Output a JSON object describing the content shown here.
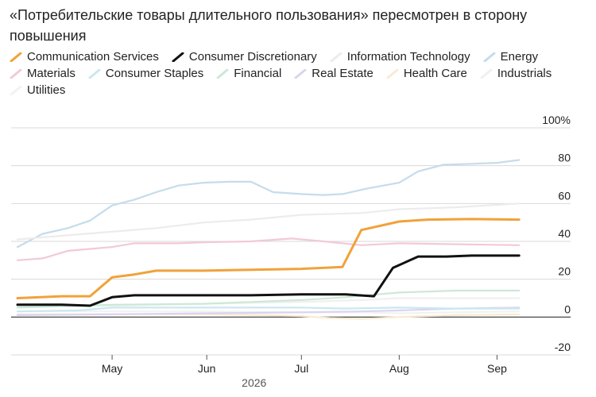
{
  "title": "«Потребительские товары длительного пользования» пересмотрен в сторону повышения",
  "chart_data": {
    "type": "line",
    "title": "«Потребительские товары длительного пользования» пересмотрен в сторону повышения",
    "xlabel": "2026",
    "ylabel": "",
    "x_ticks": [
      {
        "label": "May",
        "x": 31
      },
      {
        "label": "Jun",
        "x": 61
      },
      {
        "label": "Jul",
        "x": 91
      },
      {
        "label": "Aug",
        "x": 122
      },
      {
        "label": "Sep",
        "x": 153
      }
    ],
    "xlim": [
      0,
      168
    ],
    "ylim": [
      -20,
      100
    ],
    "y_ticks": [
      100,
      80,
      60,
      40,
      20,
      0,
      -20
    ],
    "y_tick_labels": [
      "100%",
      "80",
      "60",
      "40",
      "20",
      "0",
      "-20"
    ],
    "grid": "horizontal",
    "legend_position": "top",
    "series": [
      {
        "name": "Communication Services",
        "color": "#f0a23a",
        "highlight": true,
        "points": [
          [
            1,
            10
          ],
          [
            15,
            11
          ],
          [
            24,
            11
          ],
          [
            31,
            21
          ],
          [
            38,
            22.5
          ],
          [
            45,
            24.5
          ],
          [
            60,
            24.5
          ],
          [
            75,
            25
          ],
          [
            91,
            25.5
          ],
          [
            104,
            26.5
          ],
          [
            110,
            46
          ],
          [
            122,
            50.5
          ],
          [
            131,
            51.5
          ],
          [
            145,
            51.8
          ],
          [
            160,
            51.5
          ]
        ]
      },
      {
        "name": "Consumer Discretionary",
        "color": "#111111",
        "highlight": true,
        "points": [
          [
            1,
            6.5
          ],
          [
            15,
            6.5
          ],
          [
            24,
            6
          ],
          [
            31,
            10.5
          ],
          [
            38,
            11.5
          ],
          [
            60,
            11.5
          ],
          [
            75,
            11.5
          ],
          [
            91,
            12
          ],
          [
            105,
            12
          ],
          [
            114,
            11
          ],
          [
            120,
            26
          ],
          [
            128,
            32
          ],
          [
            137,
            32
          ],
          [
            145,
            32.5
          ],
          [
            160,
            32.5
          ]
        ]
      },
      {
        "name": "Information Technology",
        "color": "#ececec",
        "points": [
          [
            1,
            41
          ],
          [
            15,
            43
          ],
          [
            30,
            45
          ],
          [
            45,
            47
          ],
          [
            60,
            50
          ],
          [
            75,
            51.5
          ],
          [
            91,
            54
          ],
          [
            110,
            55
          ],
          [
            122,
            57
          ],
          [
            140,
            58
          ],
          [
            160,
            60
          ]
        ]
      },
      {
        "name": "Energy",
        "color": "#c5dcec",
        "points": [
          [
            1,
            37
          ],
          [
            9,
            44
          ],
          [
            17,
            47
          ],
          [
            24,
            51
          ],
          [
            31,
            59
          ],
          [
            38,
            62
          ],
          [
            45,
            66
          ],
          [
            52,
            69.5
          ],
          [
            60,
            71
          ],
          [
            68,
            71.5
          ],
          [
            75,
            71.5
          ],
          [
            82,
            66
          ],
          [
            91,
            65
          ],
          [
            98,
            64.5
          ],
          [
            104,
            65
          ],
          [
            112,
            68
          ],
          [
            122,
            71
          ],
          [
            128,
            77
          ],
          [
            136,
            80.5
          ],
          [
            145,
            81
          ],
          [
            153,
            81.5
          ],
          [
            160,
            83
          ]
        ]
      },
      {
        "name": "Materials",
        "color": "#f2c9d8",
        "points": [
          [
            1,
            30
          ],
          [
            9,
            31
          ],
          [
            17,
            35
          ],
          [
            24,
            36
          ],
          [
            31,
            37
          ],
          [
            38,
            39
          ],
          [
            52,
            39
          ],
          [
            60,
            39.5
          ],
          [
            75,
            40
          ],
          [
            88,
            41.5
          ],
          [
            98,
            40
          ],
          [
            110,
            38
          ],
          [
            122,
            39
          ],
          [
            140,
            38.5
          ],
          [
            160,
            38
          ]
        ]
      },
      {
        "name": "Consumer Staples",
        "color": "#c8e9ef",
        "points": [
          [
            1,
            3
          ],
          [
            20,
            3.5
          ],
          [
            31,
            5
          ],
          [
            45,
            5
          ],
          [
            60,
            5
          ],
          [
            75,
            5
          ],
          [
            91,
            5
          ],
          [
            105,
            4.5
          ],
          [
            122,
            5
          ],
          [
            140,
            4.5
          ],
          [
            160,
            4.5
          ]
        ]
      },
      {
        "name": "Financial",
        "color": "#cde8d6",
        "points": [
          [
            1,
            5
          ],
          [
            31,
            6.5
          ],
          [
            60,
            7
          ],
          [
            75,
            8
          ],
          [
            91,
            9
          ],
          [
            105,
            10.5
          ],
          [
            122,
            13
          ],
          [
            140,
            14
          ],
          [
            160,
            14
          ]
        ]
      },
      {
        "name": "Real Estate",
        "color": "#dcd3f0",
        "points": [
          [
            1,
            1
          ],
          [
            31,
            1.5
          ],
          [
            60,
            2
          ],
          [
            91,
            2.5
          ],
          [
            110,
            3
          ],
          [
            122,
            3.5
          ],
          [
            140,
            4.5
          ],
          [
            160,
            5
          ]
        ]
      },
      {
        "name": "Health Care",
        "color": "#f7ecd0",
        "points": [
          [
            1,
            1.5
          ],
          [
            31,
            1.5
          ],
          [
            60,
            1.5
          ],
          [
            80,
            1
          ],
          [
            91,
            0.5
          ],
          [
            100,
            -0.5
          ],
          [
            110,
            -1
          ],
          [
            122,
            0
          ],
          [
            140,
            1
          ],
          [
            160,
            1.5
          ]
        ]
      },
      {
        "name": "Industrials",
        "color": "#f0f0f0",
        "points": [
          [
            1,
            6
          ],
          [
            31,
            6
          ],
          [
            60,
            7
          ],
          [
            91,
            8
          ],
          [
            110,
            9
          ],
          [
            122,
            10
          ],
          [
            140,
            10
          ],
          [
            160,
            10
          ]
        ]
      },
      {
        "name": "Utilities",
        "color": "#f2f2f2",
        "points": [
          [
            1,
            3
          ],
          [
            31,
            3
          ],
          [
            60,
            3
          ],
          [
            91,
            2.5
          ],
          [
            110,
            2.5
          ],
          [
            122,
            2
          ],
          [
            140,
            2.5
          ],
          [
            160,
            3
          ]
        ]
      }
    ]
  }
}
